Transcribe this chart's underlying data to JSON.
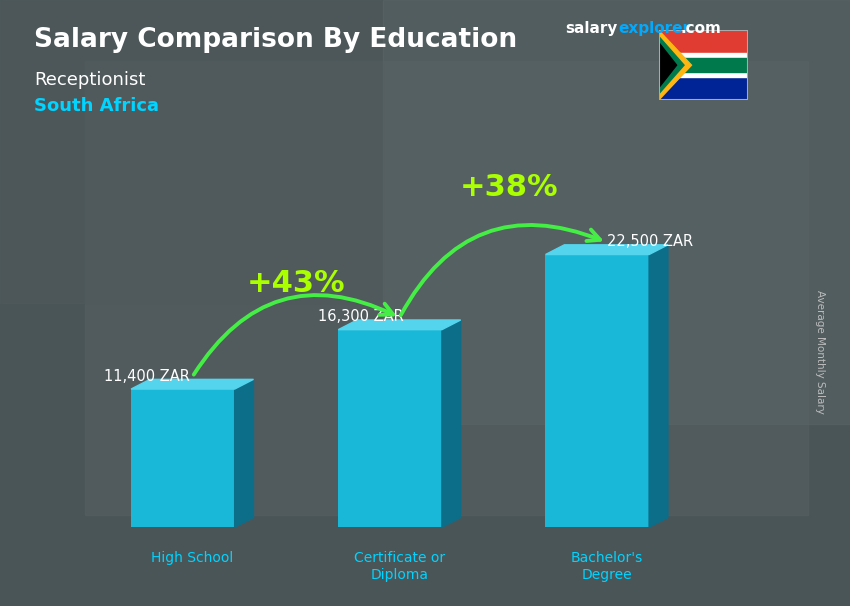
{
  "title_main": "Salary Comparison By Education",
  "subtitle1": "Receptionist",
  "subtitle2": "South Africa",
  "categories": [
    "High School",
    "Certificate or\nDiploma",
    "Bachelor's\nDegree"
  ],
  "values": [
    11400,
    16300,
    22500
  ],
  "labels": [
    "11,400 ZAR",
    "16,300 ZAR",
    "22,500 ZAR"
  ],
  "pct_labels": [
    "+43%",
    "+38%"
  ],
  "bar_color_face": "#1ab8d8",
  "bar_color_top": "#55d4ee",
  "bar_color_side": "#0d6e8a",
  "ylabel_text": "Average Monthly Salary",
  "bg_color": "#5a6a72",
  "overlay_color": "#3a4448",
  "title_color": "#ffffff",
  "subtitle1_color": "#ffffff",
  "subtitle2_color": "#00d4ff",
  "label_color": "#ffffff",
  "pct_color": "#aaff00",
  "arrow_color": "#44ee44",
  "xcat_color": "#00d4ff",
  "brand_salary_color": "#ffffff",
  "brand_explorer_color": "#00aaff",
  "brand_com_color": "#ffffff"
}
